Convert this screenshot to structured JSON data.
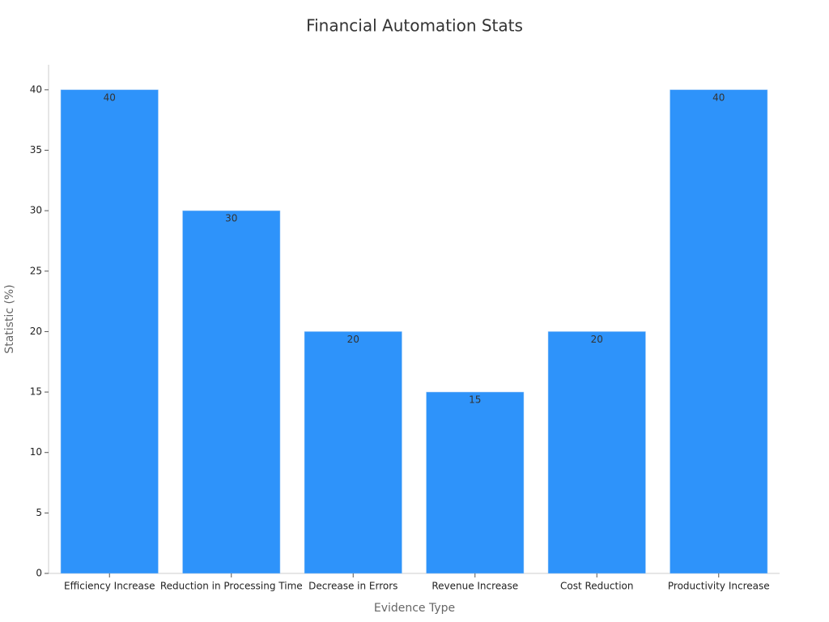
{
  "chart_data": {
    "type": "bar",
    "title": "Financial Automation Stats",
    "x_label": "Evidence Type",
    "y_label": "Statistic (%)",
    "categories": [
      "Efficiency Increase",
      "Reduction in Processing Time",
      "Decrease in Errors",
      "Revenue Increase",
      "Cost Reduction",
      "Productivity Increase"
    ],
    "values": [
      40,
      30,
      20,
      15,
      20,
      40
    ],
    "color": "#2e93fa",
    "ylim": [
      0,
      42
    ],
    "yticks": [
      0,
      5,
      10,
      15,
      20,
      25,
      30,
      35,
      40
    ],
    "grid": false
  }
}
